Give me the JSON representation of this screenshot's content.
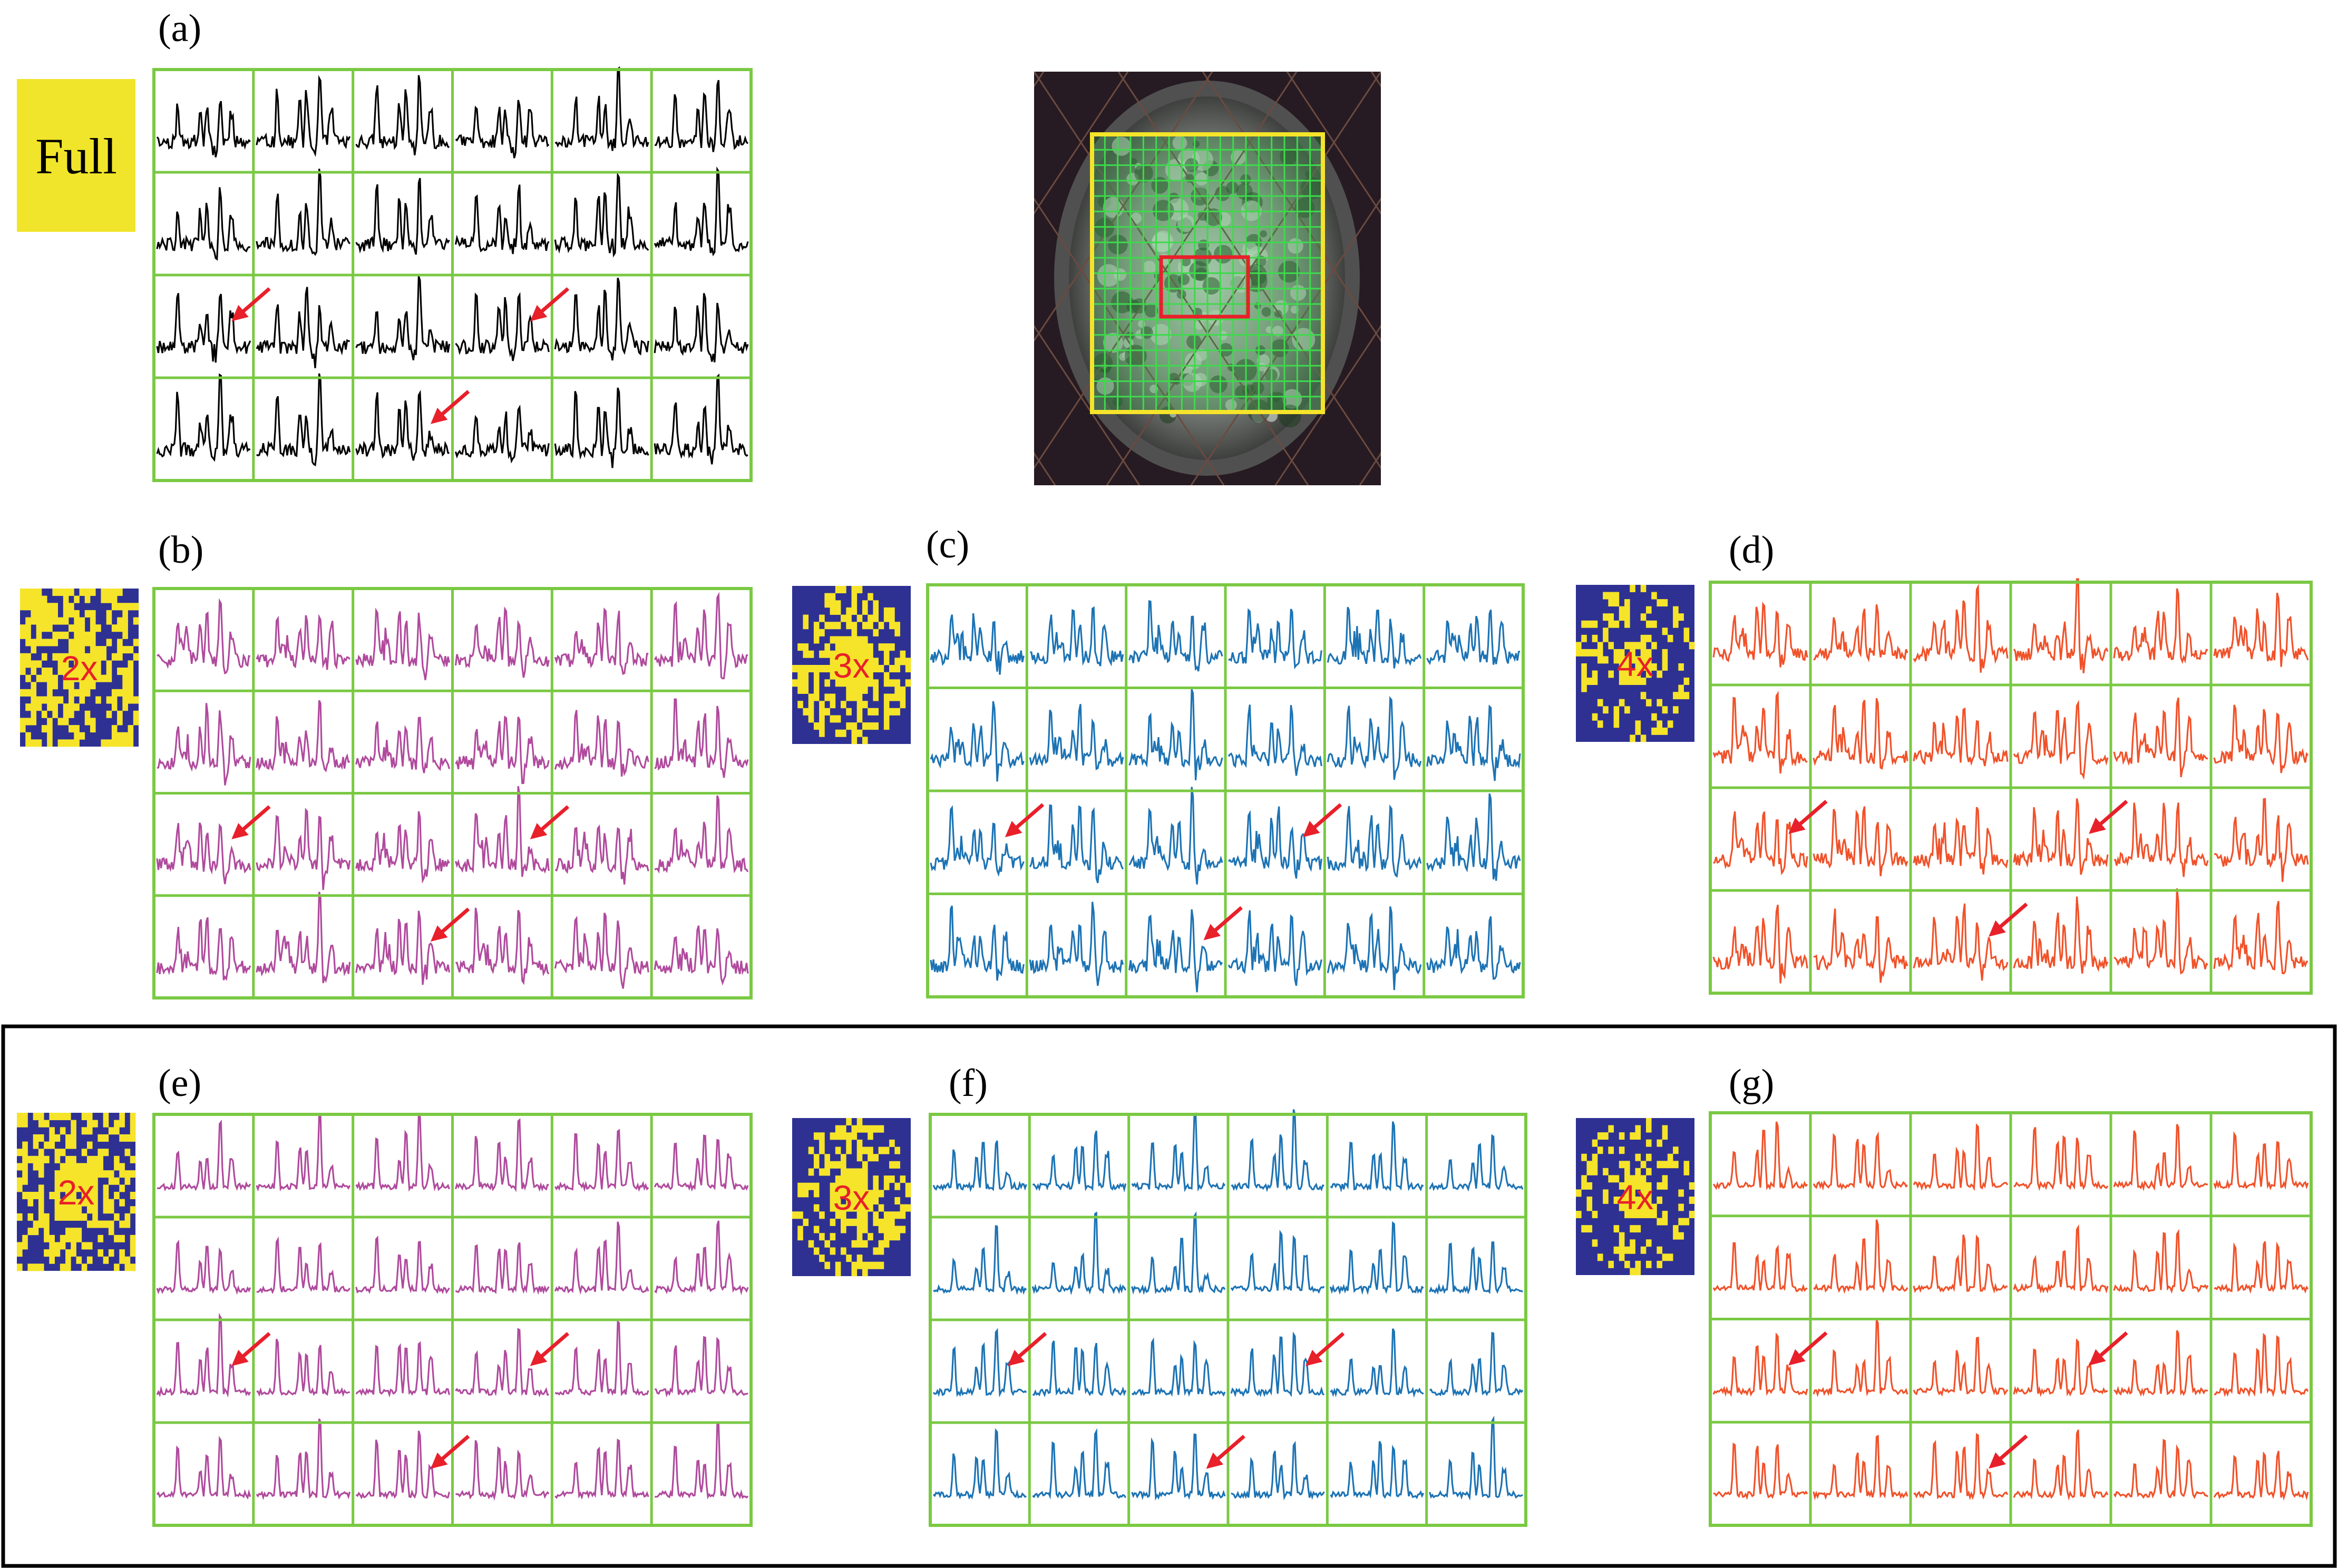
{
  "figure": {
    "panels": [
      {
        "id": "a",
        "label": "(a)",
        "color": "#000000",
        "mask": "full",
        "mask_text": "Full",
        "shape": "a",
        "seed": 11,
        "arrows": [
          [
            2,
            0
          ],
          [
            2,
            3
          ],
          [
            3,
            2
          ]
        ]
      },
      {
        "id": "b",
        "label": "(b)",
        "color": "#b04a9d",
        "mask": "random",
        "mask_text": "2x",
        "shape": "b",
        "seed": 23,
        "arrows": [
          [
            2,
            0
          ],
          [
            2,
            3
          ],
          [
            3,
            2
          ]
        ]
      },
      {
        "id": "c",
        "label": "(c)",
        "color": "#1c73b4",
        "mask": "ellipse",
        "mask_text": "3x",
        "shape": "c",
        "seed": 37,
        "arrows": [
          [
            2,
            0
          ],
          [
            2,
            3
          ],
          [
            3,
            2
          ]
        ]
      },
      {
        "id": "d",
        "label": "(d)",
        "color": "#f0522a",
        "mask": "ellipse-sparse",
        "mask_text": "4x",
        "shape": "d",
        "seed": 41,
        "arrows": [
          [
            2,
            0
          ],
          [
            2,
            3
          ],
          [
            3,
            2
          ]
        ]
      },
      {
        "id": "e",
        "label": "(e)",
        "color": "#b04a9d",
        "mask": "random",
        "mask_text": "2x",
        "shape": "clean",
        "seed": 53,
        "arrows": [
          [
            2,
            0
          ],
          [
            2,
            3
          ],
          [
            3,
            2
          ]
        ]
      },
      {
        "id": "f",
        "label": "(f)",
        "color": "#1c73b4",
        "mask": "ellipse",
        "mask_text": "3x",
        "shape": "clean",
        "seed": 67,
        "arrows": [
          [
            2,
            0
          ],
          [
            2,
            3
          ],
          [
            3,
            2
          ]
        ]
      },
      {
        "id": "g",
        "label": "(g)",
        "color": "#f0522a",
        "mask": "ellipse-sparse",
        "mask_text": "4x",
        "shape": "clean",
        "seed": 79,
        "arrows": [
          [
            2,
            0
          ],
          [
            2,
            3
          ],
          [
            3,
            2
          ]
        ]
      }
    ],
    "grid": {
      "rows": 4,
      "cols": 6
    },
    "colors": {
      "grid_line": "#7ac943",
      "arrow": "#e8202a",
      "mask_bg": "#2e3192",
      "mask_dot": "#f5e42a",
      "full_bg": "#f0e52a",
      "roi_box": "#e8202a",
      "fov_box": "#f5e42a",
      "frame": "#000000"
    },
    "brain_image": {
      "name": "brain-mri-localizer",
      "grid_rows": 18,
      "grid_cols": 18
    }
  }
}
